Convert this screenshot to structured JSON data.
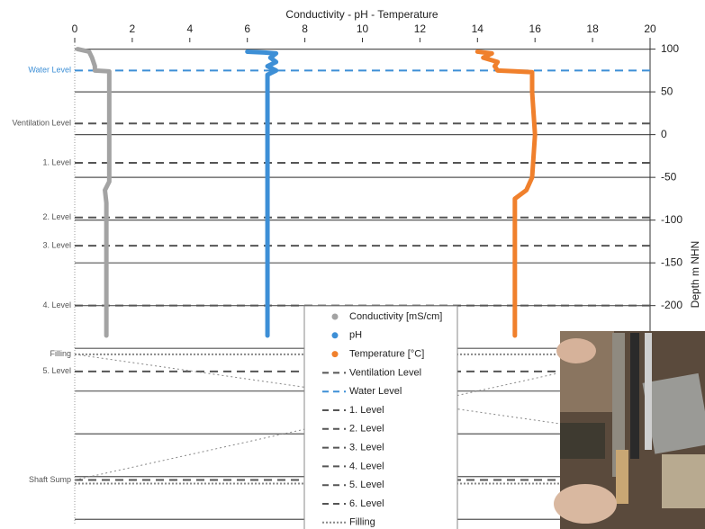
{
  "chart_data": {
    "type": "profile",
    "title": "Conductivity  - pH - Temperature",
    "y_label": "Depth m NHN",
    "xlim": [
      0,
      20
    ],
    "xticks": [
      0,
      2,
      4,
      6,
      8,
      10,
      12,
      14,
      16,
      18,
      20
    ],
    "ylim": [
      -455,
      108
    ],
    "yticks": [
      100,
      50,
      0,
      -50,
      -100,
      -150,
      -200
    ],
    "yticks_unlabeled": [
      -250,
      -300,
      -350,
      -400,
      -450
    ],
    "grid": true,
    "series": [
      {
        "name": "Conductivity [mS/cm]",
        "color": "#a3a3a3",
        "values": [
          0.1,
          0.5,
          0.6,
          0.7,
          0.7,
          1.2,
          1.2,
          1.2,
          1.2,
          1.05,
          1.1,
          1.1
        ],
        "depth": [
          100,
          97,
          90,
          80,
          75,
          74,
          50,
          0,
          -55,
          -65,
          -80,
          -235
        ]
      },
      {
        "name": "pH",
        "color": "#3d8fd6",
        "values": [
          6.0,
          6.6,
          7.0,
          6.8,
          7.0,
          6.7,
          7.0,
          6.7,
          6.7,
          6.7
        ],
        "depth": [
          97,
          96,
          95,
          90,
          85,
          80,
          75,
          70,
          0,
          -235
        ]
      },
      {
        "name": "Temperature [°C]",
        "color": "#f0802c",
        "values": [
          14.0,
          14.5,
          14.2,
          14.7,
          14.6,
          14.7,
          15.3,
          15.9,
          15.9,
          16.0,
          15.9,
          15.7,
          15.3,
          15.3
        ],
        "depth": [
          97,
          95,
          90,
          85,
          80,
          75,
          74,
          73,
          50,
          0,
          -50,
          -65,
          -75,
          -235
        ]
      }
    ],
    "levels": [
      {
        "name": "Ventilation Level",
        "label": "Ventilation Level",
        "depth": 13,
        "style": "dashed",
        "color": "#555555"
      },
      {
        "name": "Water Level",
        "label": "Water Level",
        "depth": 75,
        "style": "dashed",
        "color": "#3d8fd6"
      },
      {
        "name": "1. Level",
        "label": "1. Level",
        "depth": -33,
        "style": "dashed",
        "color": "#555555"
      },
      {
        "name": "2. Level",
        "label": "2. Level",
        "depth": -97,
        "style": "dashed",
        "color": "#555555"
      },
      {
        "name": "3. Level",
        "label": "3. Level",
        "depth": -130,
        "style": "dashed",
        "color": "#555555"
      },
      {
        "name": "4. Level",
        "label": "4. Level",
        "depth": -200,
        "style": "dashed",
        "color": "#555555"
      },
      {
        "name": "5. Level",
        "label": "5. Level",
        "depth": -277,
        "style": "dashed",
        "color": "#555555"
      },
      {
        "name": "6. Level",
        "label": "Shaft Sump",
        "depth": -404,
        "style": "dashed",
        "color": "#555555"
      },
      {
        "name": "Filling",
        "label": "Filling",
        "depth": -257,
        "style": "dotted",
        "color": "#888888"
      }
    ]
  }
}
